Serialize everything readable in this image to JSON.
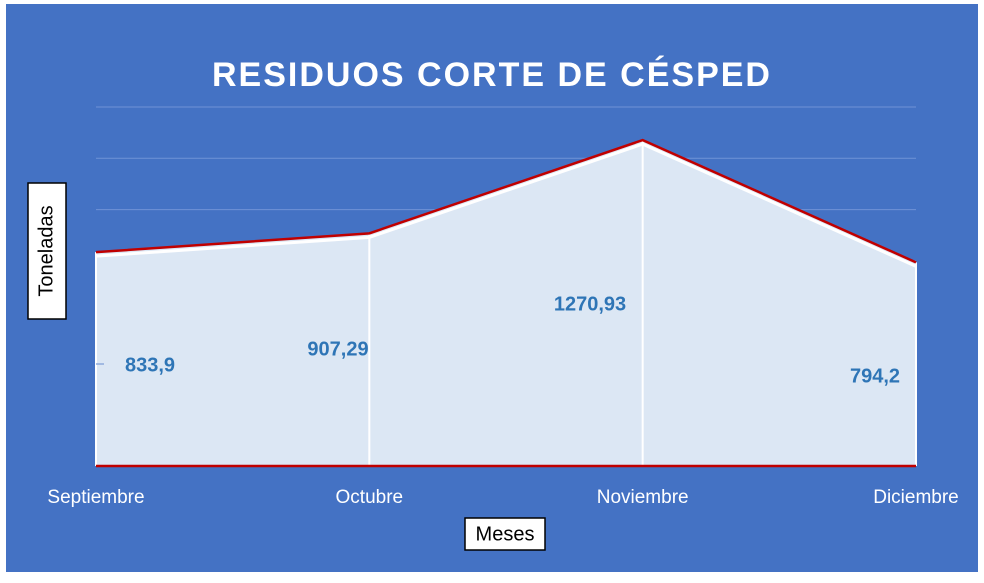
{
  "chart_data": {
    "type": "area",
    "title": "RESIDUOS CORTE DE CÉSPED",
    "x_label": "Meses",
    "y_label": "Toneladas",
    "categories": [
      "Septiembre",
      "Octubre",
      "Noviembre",
      "Diciembre"
    ],
    "values": [
      833.9,
      907.29,
      1270.93,
      794.2
    ],
    "value_labels": [
      "833,9",
      "907,29",
      "1270,93",
      "794,2"
    ],
    "color": "#dce7f4",
    "line_color": "#c00000",
    "ylim": [
      0,
      1400
    ],
    "yticks": [
      0,
      200,
      400,
      600,
      800,
      1000,
      1200,
      1400
    ],
    "grid": true
  }
}
